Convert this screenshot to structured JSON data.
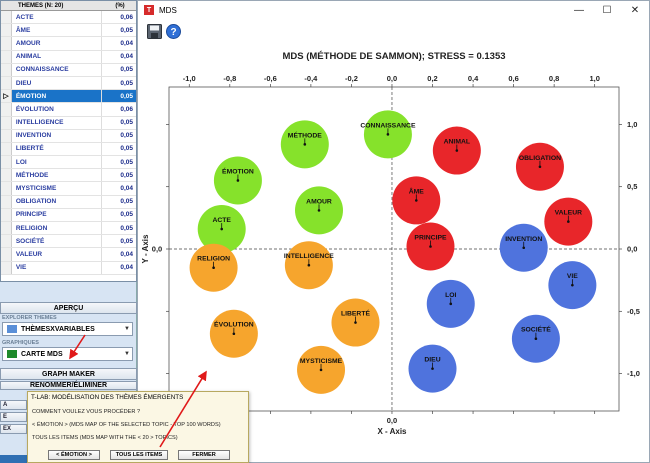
{
  "left_panel": {
    "table": {
      "headers": [
        "THEMES (N: 20)",
        "(%)"
      ],
      "rows": [
        {
          "label": "ACTE",
          "pct": "0,06"
        },
        {
          "label": "ÂME",
          "pct": "0,05"
        },
        {
          "label": "AMOUR",
          "pct": "0,04"
        },
        {
          "label": "ANIMAL",
          "pct": "0,04"
        },
        {
          "label": "CONNAISSANCE",
          "pct": "0,05"
        },
        {
          "label": "DIEU",
          "pct": "0,05"
        },
        {
          "label": "ÉMOTION",
          "pct": "0,05"
        },
        {
          "label": "ÉVOLUTION",
          "pct": "0,06"
        },
        {
          "label": "INTELLIGENCE",
          "pct": "0,05"
        },
        {
          "label": "INVENTION",
          "pct": "0,05"
        },
        {
          "label": "LIBERTÉ",
          "pct": "0,05"
        },
        {
          "label": "LOI",
          "pct": "0,05"
        },
        {
          "label": "MÉTHODE",
          "pct": "0,05"
        },
        {
          "label": "MYSTICISME",
          "pct": "0,04"
        },
        {
          "label": "OBLIGATION",
          "pct": "0,05"
        },
        {
          "label": "PRINCIPE",
          "pct": "0,05"
        },
        {
          "label": "RELIGION",
          "pct": "0,05"
        },
        {
          "label": "SOCIÉTÉ",
          "pct": "0,05"
        },
        {
          "label": "VALEUR",
          "pct": "0,04"
        },
        {
          "label": "VIE",
          "pct": "0,04"
        }
      ],
      "selected_index": 6,
      "selected_marker": "▷"
    },
    "apercu_label": "APERÇU",
    "explorer_label": "EXPLORER THEMES",
    "explorer_value": "THÈMESXVARIABLES",
    "graphiques_label": "GRAPHIQUES",
    "graphiques_value": "CARTE MDS",
    "graph_maker_label": "GRAPH MAKER",
    "renommer_label": "RENOMMER/ÉLIMINER",
    "stub_labels": [
      "A",
      "E",
      "EX"
    ]
  },
  "window": {
    "title": "MDS",
    "app_icon": "T",
    "minimize": "—",
    "maximize": "☐",
    "close": "✕",
    "toolbar": [
      "save-icon",
      "help-icon"
    ]
  },
  "chart_data": {
    "type": "scatter",
    "title": "MDS (MÉTHODE DE SAMMON); STRESS = 0.1353",
    "xlabel": "X - Axis",
    "ylabel": "Y - Axis",
    "xlim": [
      -1.1,
      1.12
    ],
    "ylim": [
      -1.3,
      1.3
    ],
    "ticks": [
      "-1,0",
      "-0,8",
      "-0,6",
      "-0,4",
      "-0,2",
      "0,0",
      "0,2",
      "0,4",
      "0,6",
      "0,8",
      "1,0"
    ],
    "yticks": [
      "1,0",
      "0,5",
      "0,0",
      "-0,5",
      "-1,0"
    ],
    "colors": {
      "green": "#86e22b",
      "red": "#e8262a",
      "blue": "#4f73dd",
      "orange": "#f6a52d"
    },
    "points": [
      {
        "label": "MÉTHODE",
        "x": -0.43,
        "y": 0.84,
        "color": "green"
      },
      {
        "label": "CONNAISSANCE",
        "x": -0.02,
        "y": 0.92,
        "color": "green"
      },
      {
        "label": "ÉMOTION",
        "x": -0.76,
        "y": 0.55,
        "color": "green"
      },
      {
        "label": "AMOUR",
        "x": -0.36,
        "y": 0.31,
        "color": "green"
      },
      {
        "label": "ACTE",
        "x": -0.84,
        "y": 0.16,
        "color": "green"
      },
      {
        "label": "ANIMAL",
        "x": 0.32,
        "y": 0.79,
        "color": "red"
      },
      {
        "label": "OBLIGATION",
        "x": 0.73,
        "y": 0.66,
        "color": "red"
      },
      {
        "label": "ÂME",
        "x": 0.12,
        "y": 0.39,
        "color": "red"
      },
      {
        "label": "VALEUR",
        "x": 0.87,
        "y": 0.22,
        "color": "red"
      },
      {
        "label": "PRINCIPE",
        "x": 0.19,
        "y": 0.02,
        "color": "red"
      },
      {
        "label": "INVENTION",
        "x": 0.65,
        "y": 0.01,
        "color": "blue"
      },
      {
        "label": "VIE",
        "x": 0.89,
        "y": -0.29,
        "color": "blue"
      },
      {
        "label": "LOI",
        "x": 0.29,
        "y": -0.44,
        "color": "blue"
      },
      {
        "label": "SOCIÉTÉ",
        "x": 0.71,
        "y": -0.72,
        "color": "blue"
      },
      {
        "label": "DIEU",
        "x": 0.2,
        "y": -0.96,
        "color": "blue"
      },
      {
        "label": "RELIGION",
        "x": -0.88,
        "y": -0.15,
        "color": "orange"
      },
      {
        "label": "INTELLIGENCE",
        "x": -0.41,
        "y": -0.13,
        "color": "orange"
      },
      {
        "label": "LIBERTÉ",
        "x": -0.18,
        "y": -0.59,
        "color": "orange"
      },
      {
        "label": "ÉVOLUTION",
        "x": -0.78,
        "y": -0.68,
        "color": "orange"
      },
      {
        "label": "MYSTICISME",
        "x": -0.35,
        "y": -0.97,
        "color": "orange"
      }
    ]
  },
  "dialog": {
    "title": "T-LAB: MODÉLISATION DES THÈMES ÉMERGENTS",
    "question": "COMMENT VOULEZ VOUS PROCÉDER ?",
    "option1": "< ÉMOTION > (MDS MAP OF THE SELECTED TOPIC - TOP 100 WORDS)",
    "option2": "TOUS LES ITEMS (MDS MAP WITH THE < 20 > TOPICS)",
    "btn_emotion": "< ÉMOTION >",
    "btn_all": "TOUS LES ITEMS",
    "btn_close": "FERMER"
  }
}
